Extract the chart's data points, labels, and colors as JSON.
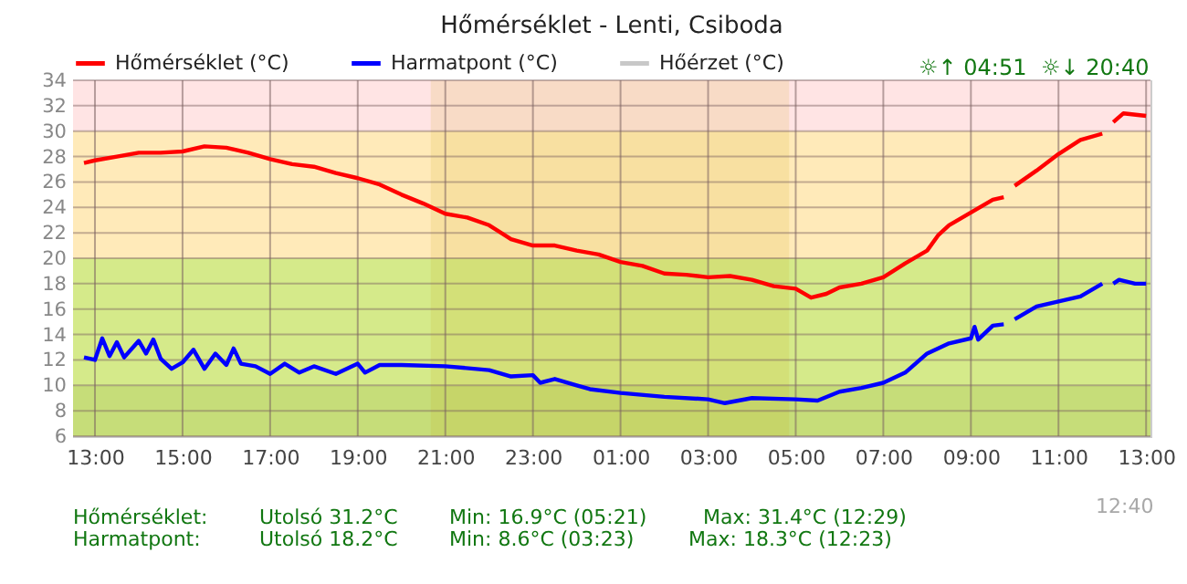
{
  "chart_data": {
    "type": "line",
    "title": "Hőmérséklet - Lenti, Csiboda",
    "xlim": [
      "--06-01T12:30",
      "--06-02T13:06"
    ],
    "xticks": [
      {
        "value": "--06-01T13:00",
        "label": "13:00"
      },
      {
        "value": "--06-01T15:00",
        "label": "15:00"
      },
      {
        "value": "--06-01T17:00",
        "label": "17:00"
      },
      {
        "value": "--06-01T19:00",
        "label": "19:00"
      },
      {
        "value": "--06-01T21:00",
        "label": "21:00"
      },
      {
        "value": "--06-01T23:00",
        "label": "23:00"
      },
      {
        "value": "--06-02T01:00",
        "label": "01:00"
      },
      {
        "value": "--06-02T03:00",
        "label": "03:00"
      },
      {
        "value": "--06-02T05:00",
        "label": "05:00"
      },
      {
        "value": "--06-02T07:00",
        "label": "07:00"
      },
      {
        "value": "--06-02T09:00",
        "label": "09:00"
      },
      {
        "value": "--06-02T11:00",
        "label": "11:00"
      },
      {
        "value": "--06-02T13:00",
        "label": "13:00"
      }
    ],
    "ylim": [
      6,
      34
    ],
    "yticks": [
      6,
      8,
      10,
      12,
      14,
      16,
      18,
      20,
      22,
      24,
      26,
      28,
      30,
      32,
      34
    ],
    "grid": true,
    "legend": "top",
    "line_style": "solid",
    "marker": "none",
    "series": [
      {
        "name": "Hőmérséklet (°C)",
        "color": "#ff0000",
        "x": [
          "--06-01T12:45",
          "--06-01T13:00",
          "--06-01T13:30",
          "--06-01T14:00",
          "--06-01T14:30",
          "--06-01T15:00",
          "--06-01T15:30",
          "--06-01T16:00",
          "--06-01T16:30",
          "--06-01T17:00",
          "--06-01T17:30",
          "--06-01T18:00",
          "--06-01T18:30",
          "--06-01T19:00",
          "--06-01T19:30",
          "--06-01T20:00",
          "--06-01T20:30",
          "--06-01T21:00",
          "--06-01T21:30",
          "--06-01T22:00",
          "--06-01T22:30",
          "--06-01T23:00",
          "--06-01T23:30",
          "--06-02T00:00",
          "--06-02T00:30",
          "--06-02T01:00",
          "--06-02T01:30",
          "--06-02T02:00",
          "--06-02T02:30",
          "--06-02T03:00",
          "--06-02T03:30",
          "--06-02T04:00",
          "--06-02T04:30",
          "--06-02T05:00",
          "--06-02T05:21",
          "--06-02T05:42",
          "--06-02T06:00",
          "--06-02T06:30",
          "--06-02T07:00",
          "--06-02T07:30",
          "--06-02T08:00",
          "--06-02T08:15",
          "--06-02T08:30",
          "--06-02T09:00",
          "--06-02T09:30",
          "--06-02T09:45",
          "--06-02T09:54",
          "--06-02T10:00",
          "--06-02T10:30",
          "--06-02T11:00",
          "--06-02T11:30",
          "--06-02T12:00",
          "--06-02T12:06",
          "--06-02T12:15",
          "--06-02T12:29",
          "--06-02T13:00"
        ],
        "values": [
          27.5,
          27.7,
          28.0,
          28.3,
          28.3,
          28.4,
          28.8,
          28.7,
          28.3,
          27.8,
          27.4,
          27.2,
          26.7,
          26.3,
          25.8,
          25.0,
          24.3,
          23.5,
          23.2,
          22.6,
          21.5,
          21.0,
          21.0,
          20.6,
          20.3,
          19.7,
          19.4,
          18.8,
          18.7,
          18.5,
          18.6,
          18.3,
          17.8,
          17.6,
          16.9,
          17.2,
          17.7,
          18.0,
          18.5,
          19.6,
          20.6,
          21.8,
          22.6,
          23.6,
          24.6,
          24.8,
          null,
          25.7,
          26.9,
          28.2,
          29.3,
          29.8,
          null,
          30.7,
          31.4,
          31.2
        ]
      },
      {
        "name": "Harmatpont (°C)",
        "color": "#0000ff",
        "x": [
          "--06-01T12:45",
          "--06-01T13:00",
          "--06-01T13:10",
          "--06-01T13:20",
          "--06-01T13:30",
          "--06-01T13:40",
          "--06-01T14:00",
          "--06-01T14:10",
          "--06-01T14:20",
          "--06-01T14:30",
          "--06-01T14:45",
          "--06-01T15:00",
          "--06-01T15:15",
          "--06-01T15:30",
          "--06-01T15:45",
          "--06-01T16:00",
          "--06-01T16:10",
          "--06-01T16:20",
          "--06-01T16:40",
          "--06-01T17:00",
          "--06-01T17:20",
          "--06-01T17:40",
          "--06-01T18:00",
          "--06-01T18:30",
          "--06-01T19:00",
          "--06-01T19:10",
          "--06-01T19:30",
          "--06-01T20:00",
          "--06-01T21:00",
          "--06-01T22:00",
          "--06-01T22:30",
          "--06-01T23:00",
          "--06-01T23:10",
          "--06-01T23:30",
          "--06-02T00:00",
          "--06-02T00:18",
          "--06-02T01:00",
          "--06-02T02:00",
          "--06-02T03:00",
          "--06-02T03:23",
          "--06-02T04:00",
          "--06-02T05:00",
          "--06-02T05:30",
          "--06-02T06:00",
          "--06-02T06:30",
          "--06-02T07:00",
          "--06-02T07:30",
          "--06-02T08:00",
          "--06-02T08:30",
          "--06-02T09:00",
          "--06-02T09:05",
          "--06-02T09:10",
          "--06-02T09:30",
          "--06-02T09:45",
          "--06-02T09:54",
          "--06-02T10:00",
          "--06-02T10:30",
          "--06-02T11:00",
          "--06-02T11:30",
          "--06-02T12:00",
          "--06-02T12:06",
          "--06-02T12:15",
          "--06-02T12:23",
          "--06-02T12:45",
          "--06-02T13:00"
        ],
        "values": [
          12.2,
          12.0,
          13.7,
          12.3,
          13.4,
          12.2,
          13.5,
          12.5,
          13.6,
          12.1,
          11.3,
          11.8,
          12.8,
          11.3,
          12.5,
          11.6,
          12.9,
          11.7,
          11.5,
          10.9,
          11.7,
          11.0,
          11.5,
          10.9,
          11.7,
          11.0,
          11.6,
          11.6,
          11.5,
          11.2,
          10.7,
          10.8,
          10.2,
          10.5,
          10.0,
          9.7,
          9.4,
          9.1,
          8.9,
          8.6,
          9.0,
          8.9,
          8.8,
          9.5,
          9.8,
          10.2,
          11.0,
          12.5,
          13.3,
          13.7,
          14.6,
          13.6,
          14.7,
          14.8,
          null,
          15.2,
          16.2,
          16.6,
          17.0,
          18.0,
          null,
          18.0,
          18.3,
          18.0,
          18.0
        ]
      },
      {
        "name": "Hőérzet (°C)",
        "color": "#c8c8c8"
      }
    ],
    "bands": [
      {
        "axis": "y",
        "from": 30,
        "to": 34,
        "color": "#ffe4e4"
      },
      {
        "axis": "y",
        "from": 20,
        "to": 30,
        "color": "#ffeab9"
      },
      {
        "axis": "y",
        "from": 10,
        "to": 20,
        "color": "#d5ea8a"
      },
      {
        "axis": "y",
        "from": 6,
        "to": 10,
        "color": "#c6dd79"
      },
      {
        "axis": "x",
        "from": "--06-01T20:40",
        "to": "--06-02T04:51",
        "color": "#c8a000"
      }
    ],
    "annotations": [
      "☼↑ 04:51",
      "☼↓ 20:40",
      "Hőmérséklet:",
      "Utolsó 31.2°C",
      "Min: 16.9°C (05:21)",
      "Max: 31.4°C (12:29)",
      "Harmatpont:",
      "Utolsó 18.2°C",
      "Min: 8.6°C (03:23)",
      "Max: 18.3°C (12:23)",
      "12:40"
    ]
  }
}
